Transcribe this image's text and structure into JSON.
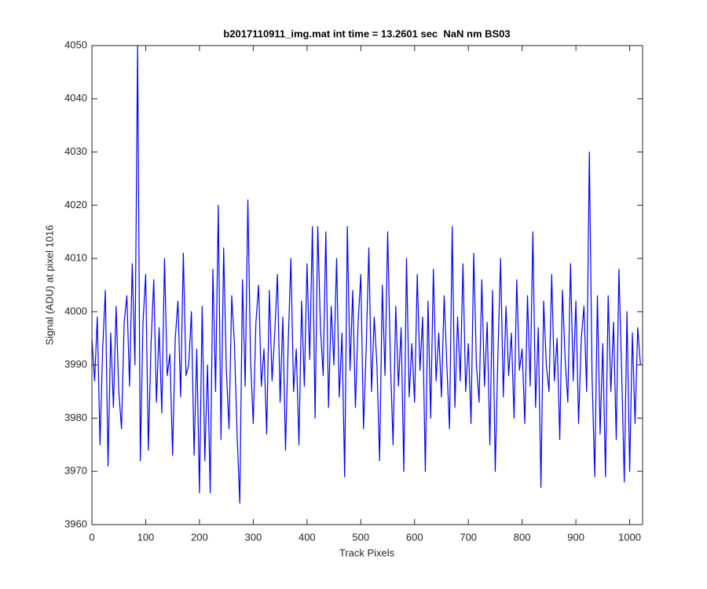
{
  "chart_data": {
    "type": "line",
    "title": "b2017110911_img.mat int time = 13.2601 sec  NaN nm BS03",
    "x_label": "Track Pixels",
    "y_label": "Signal (ADU) at pixel 1016",
    "color": "#0000ff",
    "xlim": [
      0,
      1024
    ],
    "xticks": [
      0,
      100,
      200,
      300,
      400,
      500,
      600,
      700,
      800,
      900,
      1000
    ],
    "ylim": [
      3960,
      4050
    ],
    "yticks": [
      3960,
      3970,
      3980,
      3990,
      4000,
      4010,
      4020,
      4030,
      4040,
      4050
    ],
    "grid": false,
    "x": [
      0,
      5,
      10,
      15,
      20,
      25,
      30,
      35,
      40,
      45,
      50,
      55,
      60,
      65,
      70,
      75,
      80,
      85,
      90,
      95,
      100,
      105,
      110,
      115,
      120,
      125,
      130,
      135,
      140,
      145,
      150,
      155,
      160,
      165,
      170,
      175,
      180,
      185,
      190,
      195,
      200,
      205,
      210,
      215,
      220,
      225,
      230,
      235,
      240,
      245,
      250,
      255,
      260,
      265,
      270,
      275,
      280,
      285,
      290,
      295,
      300,
      305,
      310,
      315,
      320,
      325,
      330,
      335,
      340,
      345,
      350,
      355,
      360,
      365,
      370,
      375,
      380,
      385,
      390,
      395,
      400,
      405,
      410,
      415,
      420,
      425,
      430,
      435,
      440,
      445,
      450,
      455,
      460,
      465,
      470,
      475,
      480,
      485,
      490,
      495,
      500,
      505,
      510,
      515,
      520,
      525,
      530,
      535,
      540,
      545,
      550,
      555,
      560,
      565,
      570,
      575,
      580,
      585,
      590,
      595,
      600,
      605,
      610,
      615,
      620,
      625,
      630,
      635,
      640,
      645,
      650,
      655,
      660,
      665,
      670,
      675,
      680,
      685,
      690,
      695,
      700,
      705,
      710,
      715,
      720,
      725,
      730,
      735,
      740,
      745,
      750,
      755,
      760,
      765,
      770,
      775,
      780,
      785,
      790,
      795,
      800,
      805,
      810,
      815,
      820,
      825,
      830,
      835,
      840,
      845,
      850,
      855,
      860,
      865,
      870,
      875,
      880,
      885,
      890,
      895,
      900,
      905,
      910,
      915,
      920,
      925,
      930,
      935,
      940,
      945,
      950,
      955,
      960,
      965,
      970,
      975,
      980,
      985,
      990,
      995,
      1000,
      1005,
      1010,
      1015,
      1020
    ],
    "values": [
      3995,
      3987,
      3999,
      3975,
      3993,
      4004,
      3971,
      3996,
      3982,
      4001,
      3985,
      3978,
      3998,
      4003,
      3986,
      4009,
      3990,
      4050,
      3972,
      3998,
      4007,
      3974,
      3994,
      4006,
      3983,
      3997,
      3981,
      4010,
      3988,
      3992,
      3973,
      3995,
      4002,
      3984,
      4011,
      3988,
      3990,
      4000,
      3973,
      3993,
      3966,
      4001,
      3972,
      3990,
      3966,
      4008,
      3985,
      4020,
      3976,
      4012,
      3989,
      3978,
      4003,
      3994,
      3977,
      3964,
      4006,
      3986,
      4021,
      3991,
      3979,
      3998,
      4005,
      3986,
      3993,
      3977,
      4004,
      3987,
      3996,
      4007,
      3983,
      3999,
      3974,
      3994,
      4010,
      3985,
      3993,
      3975,
      4002,
      3986,
      4009,
      3991,
      4016,
      3980,
      4016,
      3997,
      3988,
      4015,
      3982,
      4001,
      3990,
      4010,
      3984,
      3996,
      3969,
      4016,
      3989,
      4004,
      3982,
      3998,
      4007,
      3978,
      3993,
      4012,
      3985,
      3999,
      3990,
      3972,
      4005,
      3988,
      4015,
      3991,
      3975,
      4001,
      3986,
      3997,
      3970,
      4010,
      3984,
      3994,
      3983,
      4007,
      3989,
      3999,
      3970,
      4002,
      3980,
      4008,
      3987,
      3996,
      3984,
      4003,
      3990,
      3978,
      4016,
      3982,
      3999,
      3987,
      4009,
      3985,
      3994,
      3979,
      4011,
      3990,
      3983,
      4006,
      3986,
      3998,
      3975,
      4004,
      3970,
      3992,
      4010,
      3984,
      4001,
      3988,
      3996,
      3980,
      4006,
      3989,
      3993,
      3979,
      4003,
      3986,
      4015,
      3982,
      3997,
      3967,
      4002,
      3990,
      3985,
      4007,
      3987,
      3995,
      3976,
      4004,
      3991,
      3983,
      4009,
      3987,
      4002,
      3979,
      3995,
      4001,
      3985,
      4030,
      3988,
      3969,
      4003,
      3977,
      3994,
      3969,
      4003,
      3985,
      3998,
      3976,
      4008,
      3989,
      3968,
      4000,
      3970,
      3996,
      3979,
      3997,
      3990
    ]
  }
}
